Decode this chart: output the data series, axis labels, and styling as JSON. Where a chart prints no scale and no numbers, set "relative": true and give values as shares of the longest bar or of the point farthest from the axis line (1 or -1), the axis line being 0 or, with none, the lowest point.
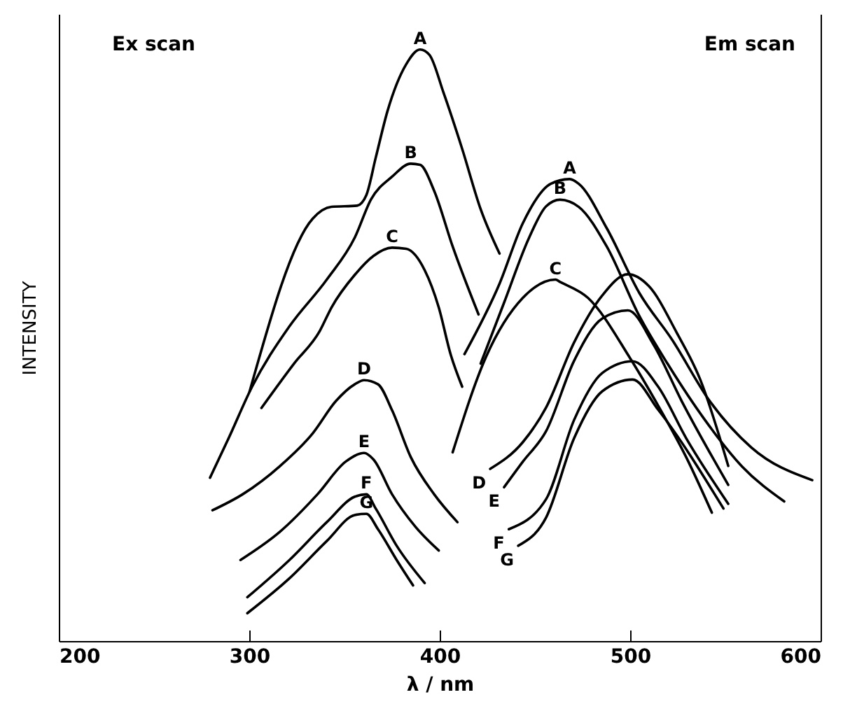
{
  "chart_data": {
    "type": "line",
    "xlabel": "λ / nm",
    "ylabel": "INTENSITY",
    "relative": true,
    "xlim": [
      200,
      600
    ],
    "xticks": [
      200,
      300,
      400,
      500,
      600
    ],
    "grid": false,
    "marker": "none",
    "line_style": "solid",
    "annotations": [
      "Ex scan",
      "Em scan"
    ],
    "series": [
      {
        "name": "A",
        "color": "#000000",
        "x": [
          300.2,
          333.3,
          343.2,
          356.6,
          361.5,
          366.4,
          372.6,
          382.4,
          389.7,
          394.6,
          402,
          411.8,
          421.5,
          431.4
        ],
        "values": [
          0.422,
          0.714,
          0.734,
          0.736,
          0.754,
          0.817,
          0.896,
          0.975,
          1,
          0.991,
          0.927,
          0.832,
          0.73,
          0.655
        ]
      },
      {
        "name": "B",
        "color": "#000000",
        "x": [
          279.4,
          289.2,
          301.5,
          321.1,
          340.7,
          355.4,
          364,
          375,
          384.8,
          389.7,
          397.1,
          406.8,
          420.4
        ],
        "values": [
          0.276,
          0.343,
          0.43,
          0.532,
          0.611,
          0.682,
          0.747,
          0.785,
          0.807,
          0.805,
          0.761,
          0.667,
          0.552
        ]
      },
      {
        "name": "C",
        "color": "#000000",
        "x": [
          306.4,
          323.5,
          337,
          343.2,
          355.4,
          365.2,
          375,
          382.4,
          392.1,
          399.5,
          405.7,
          411.8
        ],
        "values": [
          0.394,
          0.469,
          0.524,
          0.564,
          0.619,
          0.651,
          0.665,
          0.663,
          0.627,
          0.564,
          0.485,
          0.43
        ]
      },
      {
        "name": "D",
        "color": "#000000",
        "x": [
          280.7,
          296.5,
          316.2,
          333.3,
          345.6,
          355.4,
          360.3,
          367.6,
          375,
          384.8,
          397.1,
          409.3
        ],
        "values": [
          0.221,
          0.248,
          0.296,
          0.351,
          0.406,
          0.434,
          0.441,
          0.434,
          0.39,
          0.311,
          0.248,
          0.201
        ]
      },
      {
        "name": "E",
        "color": "#000000",
        "x": [
          295.4,
          316.2,
          335.8,
          350.5,
          360.3,
          365.2,
          375,
          387.3,
          399.5
        ],
        "values": [
          0.137,
          0.185,
          0.248,
          0.303,
          0.318,
          0.307,
          0.248,
          0.193,
          0.153
        ]
      },
      {
        "name": "F",
        "color": "#000000",
        "x": [
          299,
          321.1,
          340.7,
          355.4,
          361.5,
          366.4,
          377.4,
          392.1
        ],
        "values": [
          0.074,
          0.137,
          0.201,
          0.244,
          0.248,
          0.224,
          0.161,
          0.098
        ]
      },
      {
        "name": "G",
        "color": "#000000",
        "x": [
          299,
          321.1,
          340.7,
          355.4,
          361.5,
          367.6,
          377.4,
          386
        ],
        "values": [
          0.047,
          0.106,
          0.169,
          0.213,
          0.215,
          0.189,
          0.137,
          0.094
        ]
      },
      {
        "name": "A",
        "color": "#000000",
        "x": [
          413,
          431.4,
          443.6,
          458.3,
          468.2,
          473,
          487.7,
          504.9,
          522.1,
          541.7,
          563.7,
          595.6
        ],
        "values": [
          0.485,
          0.604,
          0.706,
          0.773,
          0.781,
          0.773,
          0.698,
          0.588,
          0.509,
          0.406,
          0.327,
          0.272
        ]
      },
      {
        "name": "B",
        "color": "#000000",
        "x": [
          421.5,
          433.8,
          447.1,
          455.9,
          463.2,
          473,
          487.7,
          504.9,
          519.6,
          539.2,
          558.8,
          580.9
        ],
        "values": [
          0.469,
          0.572,
          0.683,
          0.735,
          0.746,
          0.734,
          0.667,
          0.549,
          0.469,
          0.374,
          0.295,
          0.236
        ]
      },
      {
        "name": "C",
        "color": "#000000",
        "x": [
          406.8,
          424,
          443.6,
          460.8,
          463.2,
          477.9,
          500,
          514.7,
          529.4,
          542.9
        ],
        "values": [
          0.319,
          0.478,
          0.58,
          0.611,
          0.607,
          0.58,
          0.478,
          0.398,
          0.311,
          0.217
        ]
      },
      {
        "name": "D",
        "color": "#000000",
        "x": [
          426.5,
          443.6,
          455.9,
          470.6,
          485.3,
          498.8,
          509.8,
          524.5,
          536.8,
          551.5
        ],
        "values": [
          0.291,
          0.336,
          0.395,
          0.505,
          0.584,
          0.62,
          0.6,
          0.521,
          0.442,
          0.296
        ]
      },
      {
        "name": "E",
        "color": "#000000",
        "x": [
          433.8,
          443.6,
          455.9,
          470.6,
          485.3,
          498.8,
          512.3,
          527,
          551.5
        ],
        "values": [
          0.26,
          0.303,
          0.355,
          0.474,
          0.545,
          0.559,
          0.501,
          0.406,
          0.264
        ]
      },
      {
        "name": "F",
        "color": "#000000",
        "x": [
          436.3,
          455.9,
          470.6,
          485.3,
          501.3,
          514.7,
          529.4,
          551.5
        ],
        "values": [
          0.189,
          0.24,
          0.374,
          0.453,
          0.473,
          0.43,
          0.343,
          0.232
        ]
      },
      {
        "name": "G",
        "color": "#000000",
        "x": [
          441.2,
          455.9,
          470.6,
          485.3,
          501.3,
          514.7,
          549
        ],
        "values": [
          0.161,
          0.209,
          0.343,
          0.422,
          0.442,
          0.391,
          0.224
        ]
      }
    ]
  }
}
